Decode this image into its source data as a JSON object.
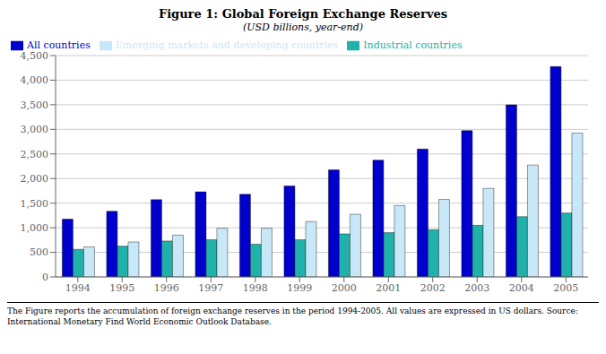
{
  "chart_data": {
    "type": "bar",
    "title": "Figure 1: Global Foreign Exchange Reserves",
    "subtitle": "(USD billions, year-end)",
    "footnote": "The Figure reports the accumulation of foreign exchange reserves in the period 1994-2005. All values are expressed in US dollars.  Source: International Monetary Find World Economic Outlook Database.",
    "categories": [
      "1994",
      "1995",
      "1996",
      "1997",
      "1998",
      "1999",
      "2000",
      "2001",
      "2002",
      "2003",
      "2004",
      "2005"
    ],
    "series": [
      {
        "name": "All countries",
        "color": "#0000CD",
        "values": [
          1175,
          1335,
          1570,
          1730,
          1680,
          1850,
          2175,
          2375,
          2600,
          2975,
          3500,
          4275
        ]
      },
      {
        "name": "Industrial countries",
        "color": "#20B2AA",
        "values": [
          560,
          625,
          730,
          755,
          665,
          755,
          875,
          900,
          960,
          1050,
          1225,
          1300
        ]
      },
      {
        "name": "Emerging markets and developing countries",
        "color": "#C8E8F8",
        "values": [
          610,
          710,
          850,
          990,
          990,
          1125,
          1275,
          1450,
          1575,
          1800,
          2275,
          2925
        ]
      }
    ],
    "ylim": [
      0,
      4500
    ],
    "yticks": [
      0,
      500,
      {
        "value": 1000,
        "label": "1,000"
      },
      {
        "value": 1500,
        "label": "1,500"
      },
      {
        "value": 2000,
        "label": "2,000"
      },
      {
        "value": 2500,
        "label": "2,500"
      },
      {
        "value": 3000,
        "label": "3,000"
      },
      {
        "value": 3500,
        "label": "3,500"
      },
      {
        "value": 4000,
        "label": "4,000"
      },
      {
        "value": 4500,
        "label": "4,500"
      }
    ],
    "grid": true,
    "legend": "top-left"
  }
}
